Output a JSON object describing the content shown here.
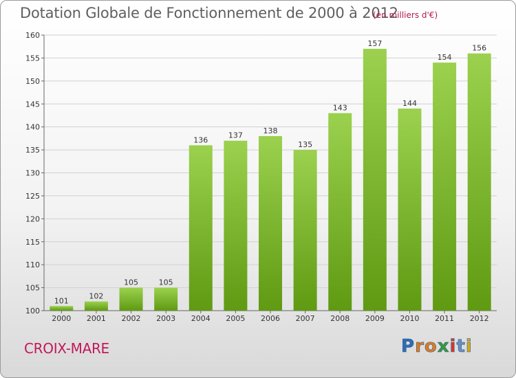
{
  "header": {
    "title": "Dotation Globale de Fonctionnement de 2000 à 2012",
    "unit": "(en milliers d'€)"
  },
  "footer": {
    "commune": "CROIX-MARE",
    "logo_text": "Proxiti",
    "logo_letters": [
      "P",
      "r",
      "o",
      "x",
      "i",
      "t",
      "i"
    ],
    "logo_colors": [
      "#2e6db4",
      "#e07a1f",
      "#e07a1f",
      "#3a9a3a",
      "#d43a2a",
      "#6a8fc0",
      "#d9a81a"
    ]
  },
  "colors": {
    "bar_top": "#9bd14e",
    "bar_bottom": "#5f9a12",
    "axis": "#666666",
    "grid": "#d0d0d0",
    "text": "#333333"
  },
  "chart_data": {
    "type": "bar",
    "title": "Dotation Globale de Fonctionnement de 2000 à 2012",
    "xlabel": "",
    "ylabel": "",
    "categories": [
      "2000",
      "2001",
      "2002",
      "2003",
      "2004",
      "2005",
      "2006",
      "2007",
      "2008",
      "2009",
      "2010",
      "2011",
      "2012"
    ],
    "values": [
      101,
      102,
      105,
      105,
      136,
      137,
      138,
      135,
      143,
      157,
      144,
      154,
      156
    ],
    "ylim": [
      100,
      160
    ],
    "yticks": [
      100,
      105,
      110,
      115,
      120,
      125,
      130,
      135,
      140,
      145,
      150,
      155,
      160
    ],
    "grid": true,
    "data_labels": true
  }
}
